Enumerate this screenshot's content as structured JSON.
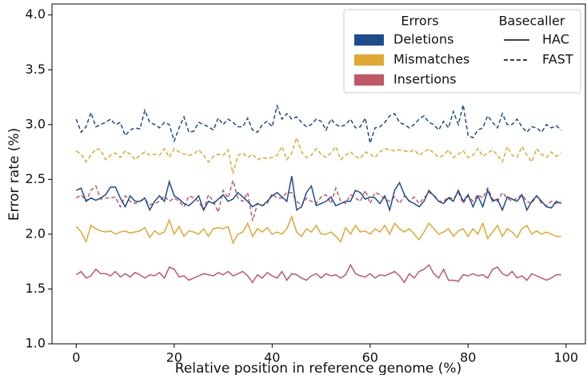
{
  "chart_data": {
    "type": "line",
    "xlabel": "Relative position in reference genome (%)",
    "ylabel": "Error rate (%)",
    "xlim": [
      -4.95,
      103.95
    ],
    "xticks": [
      0,
      20,
      40,
      60,
      80,
      100
    ],
    "ylim": [
      1.0,
      4.1
    ],
    "yticks": [
      {
        "value": 1.0,
        "label": "1.0"
      },
      1.5,
      {
        "value": 2.0,
        "label": "2.0"
      },
      2.5,
      {
        "value": 3.0,
        "label": "3.0"
      },
      3.5,
      {
        "value": 4.0,
        "label": "4.0"
      }
    ],
    "legend": {
      "position": "upper right",
      "errors_title": "Errors",
      "errors": [
        {
          "name": "Deletions",
          "color": "#1c4d8c"
        },
        {
          "name": "Mismatches",
          "color": "#e0a832"
        },
        {
          "name": "Insertions",
          "color": "#c05868"
        }
      ],
      "basecaller_title": "Basecaller",
      "basecallers": [
        {
          "name": "HAC",
          "style": "solid"
        },
        {
          "name": "FAST",
          "style": "dashed"
        }
      ]
    },
    "x": [
      0,
      1,
      2,
      3,
      4,
      5,
      6,
      7,
      8,
      9,
      10,
      11,
      12,
      13,
      14,
      15,
      16,
      17,
      18,
      19,
      20,
      21,
      22,
      23,
      24,
      25,
      26,
      27,
      28,
      29,
      30,
      31,
      32,
      33,
      34,
      35,
      36,
      37,
      38,
      39,
      40,
      41,
      42,
      43,
      44,
      45,
      46,
      47,
      48,
      49,
      50,
      51,
      52,
      53,
      54,
      55,
      56,
      57,
      58,
      59,
      60,
      61,
      62,
      63,
      64,
      65,
      66,
      67,
      68,
      69,
      70,
      71,
      72,
      73,
      74,
      75,
      76,
      77,
      78,
      79,
      80,
      81,
      82,
      83,
      84,
      85,
      86,
      87,
      88,
      89,
      90,
      91,
      92,
      93,
      94,
      95,
      96,
      97,
      98,
      99
    ],
    "series": [
      {
        "error": "Deletions",
        "basecaller": "FAST",
        "color": "#1c4d8c",
        "style": "dashed",
        "values": [
          3.05,
          2.93,
          2.98,
          3.11,
          2.98,
          3.0,
          3.02,
          3.05,
          3.0,
          3.02,
          2.9,
          2.95,
          2.97,
          2.96,
          3.13,
          3.02,
          3.0,
          2.97,
          3.02,
          3.0,
          2.85,
          2.97,
          3.07,
          2.93,
          2.94,
          3.02,
          3.0,
          2.98,
          2.95,
          3.06,
          3.0,
          3.05,
          3.02,
          2.98,
          2.98,
          3.06,
          2.95,
          2.93,
          3.0,
          3.03,
          2.98,
          3.17,
          3.05,
          3.1,
          3.05,
          3.07,
          3.02,
          2.98,
          3.0,
          3.05,
          3.03,
          2.95,
          3.05,
          3.0,
          2.98,
          3.0,
          3.05,
          2.97,
          2.98,
          3.06,
          2.83,
          2.97,
          2.98,
          3.02,
          3.08,
          3.1,
          3.02,
          3.0,
          2.97,
          3.0,
          3.05,
          3.08,
          3.02,
          3.0,
          2.95,
          3.03,
          2.97,
          3.12,
          3.0,
          3.18,
          2.9,
          2.88,
          2.95,
          2.97,
          3.08,
          3.02,
          2.97,
          3.1,
          3.0,
          3.0,
          3.05,
          2.98,
          2.93,
          2.98,
          2.97,
          2.93,
          3.0,
          2.97,
          2.99,
          2.95
        ]
      },
      {
        "error": "Mismatches",
        "basecaller": "FAST",
        "color": "#e0a832",
        "style": "dashed",
        "values": [
          2.76,
          2.73,
          2.66,
          2.72,
          2.78,
          2.77,
          2.68,
          2.72,
          2.74,
          2.7,
          2.76,
          2.73,
          2.68,
          2.72,
          2.75,
          2.72,
          2.73,
          2.72,
          2.78,
          2.7,
          2.78,
          2.75,
          2.73,
          2.72,
          2.73,
          2.77,
          2.72,
          2.66,
          2.71,
          2.73,
          2.72,
          2.77,
          2.55,
          2.72,
          2.74,
          2.7,
          2.73,
          2.68,
          2.7,
          2.69,
          2.7,
          2.72,
          2.8,
          2.68,
          2.74,
          2.88,
          2.75,
          2.7,
          2.72,
          2.78,
          2.73,
          2.7,
          2.74,
          2.8,
          2.68,
          2.72,
          2.75,
          2.71,
          2.69,
          2.75,
          2.73,
          2.7,
          2.75,
          2.78,
          2.77,
          2.76,
          2.77,
          2.76,
          2.75,
          2.77,
          2.72,
          2.75,
          2.78,
          2.74,
          2.7,
          2.72,
          2.77,
          2.7,
          2.73,
          2.76,
          2.7,
          2.72,
          2.78,
          2.71,
          2.74,
          2.77,
          2.72,
          2.66,
          2.8,
          2.72,
          2.7,
          2.8,
          2.72,
          2.66,
          2.78,
          2.73,
          2.7,
          2.75,
          2.71,
          2.74
        ]
      },
      {
        "error": "Insertions",
        "basecaller": "FAST",
        "color": "#c05868",
        "style": "dashed",
        "values": [
          2.33,
          2.36,
          2.3,
          2.4,
          2.44,
          2.32,
          2.33,
          2.33,
          2.34,
          2.25,
          2.35,
          2.3,
          2.28,
          2.3,
          2.32,
          2.27,
          2.28,
          2.3,
          2.35,
          2.3,
          2.33,
          2.3,
          2.25,
          2.35,
          2.33,
          2.3,
          2.22,
          2.36,
          2.3,
          2.2,
          2.4,
          2.33,
          2.49,
          2.33,
          2.3,
          2.38,
          2.12,
          2.28,
          2.26,
          2.28,
          2.37,
          2.33,
          2.33,
          2.38,
          2.38,
          2.3,
          2.26,
          2.33,
          2.3,
          2.28,
          2.34,
          2.36,
          2.28,
          2.42,
          2.3,
          2.28,
          2.36,
          2.33,
          2.3,
          2.4,
          2.28,
          2.38,
          2.36,
          2.32,
          2.3,
          2.34,
          2.28,
          2.35,
          2.3,
          2.34,
          2.28,
          2.33,
          2.38,
          2.36,
          2.3,
          2.3,
          2.34,
          2.32,
          2.38,
          2.28,
          2.35,
          2.3,
          2.36,
          2.33,
          2.42,
          2.32,
          2.3,
          2.38,
          2.33,
          2.3,
          2.33,
          2.36,
          2.3,
          2.28,
          2.35,
          2.28,
          2.26,
          2.3,
          2.28,
          2.3
        ]
      },
      {
        "error": "Deletions",
        "basecaller": "HAC",
        "color": "#1c4d8c",
        "style": "solid",
        "values": [
          2.4,
          2.42,
          2.3,
          2.33,
          2.31,
          2.33,
          2.36,
          2.43,
          2.43,
          2.33,
          2.25,
          2.35,
          2.3,
          2.3,
          2.33,
          2.22,
          2.3,
          2.35,
          2.3,
          2.48,
          2.35,
          2.32,
          2.28,
          2.26,
          2.3,
          2.35,
          2.22,
          2.3,
          2.28,
          2.32,
          2.36,
          2.3,
          2.32,
          2.38,
          2.34,
          2.3,
          2.25,
          2.28,
          2.26,
          2.3,
          2.35,
          2.38,
          2.34,
          2.3,
          2.53,
          2.22,
          2.25,
          2.38,
          2.44,
          2.26,
          2.28,
          2.3,
          2.34,
          2.26,
          2.28,
          2.3,
          2.3,
          2.4,
          2.38,
          2.32,
          2.34,
          2.33,
          2.28,
          2.35,
          2.22,
          2.4,
          2.47,
          2.36,
          2.3,
          2.28,
          2.25,
          2.3,
          2.4,
          2.35,
          2.3,
          2.28,
          2.33,
          2.3,
          2.4,
          2.3,
          2.36,
          2.25,
          2.35,
          2.25,
          2.4,
          2.3,
          2.32,
          2.22,
          2.34,
          2.32,
          2.3,
          2.36,
          2.22,
          2.3,
          2.35,
          2.3,
          2.25,
          2.24,
          2.3,
          2.28
        ]
      },
      {
        "error": "Mismatches",
        "basecaller": "HAC",
        "color": "#e0a832",
        "style": "solid",
        "values": [
          2.07,
          2.02,
          1.93,
          2.08,
          2.05,
          2.03,
          2.02,
          2.03,
          2.0,
          2.02,
          2.03,
          2.01,
          2.02,
          2.03,
          2.06,
          1.97,
          2.03,
          2.0,
          2.02,
          2.13,
          2.0,
          2.07,
          1.98,
          2.03,
          2.02,
          2.0,
          2.05,
          1.98,
          2.05,
          2.06,
          2.05,
          2.07,
          1.92,
          2.0,
          2.02,
          2.1,
          1.98,
          2.05,
          2.02,
          2.06,
          2.0,
          2.02,
          2.0,
          2.05,
          2.16,
          2.02,
          1.98,
          2.05,
          2.02,
          2.08,
          2.0,
          2.0,
          2.02,
          1.98,
          1.93,
          2.06,
          2.0,
          2.08,
          2.02,
          2.03,
          2.0,
          2.05,
          2.02,
          2.08,
          2.0,
          2.1,
          2.05,
          2.02,
          2.05,
          2.0,
          1.95,
          2.02,
          2.1,
          2.05,
          2.0,
          2.02,
          2.05,
          1.98,
          2.03,
          2.05,
          1.98,
          2.05,
          2.0,
          2.1,
          1.96,
          2.02,
          2.08,
          1.98,
          2.05,
          2.02,
          1.97,
          2.05,
          2.08,
          2.0,
          2.03,
          2.0,
          2.02,
          2.0,
          1.98,
          1.98
        ]
      },
      {
        "error": "Insertions",
        "basecaller": "HAC",
        "color": "#c05868",
        "style": "solid",
        "values": [
          1.63,
          1.66,
          1.6,
          1.62,
          1.68,
          1.64,
          1.64,
          1.62,
          1.66,
          1.61,
          1.64,
          1.61,
          1.65,
          1.63,
          1.6,
          1.63,
          1.62,
          1.65,
          1.6,
          1.7,
          1.68,
          1.61,
          1.62,
          1.58,
          1.6,
          1.62,
          1.64,
          1.63,
          1.62,
          1.65,
          1.63,
          1.66,
          1.62,
          1.64,
          1.66,
          1.62,
          1.56,
          1.63,
          1.6,
          1.65,
          1.62,
          1.6,
          1.66,
          1.58,
          1.64,
          1.63,
          1.6,
          1.58,
          1.62,
          1.64,
          1.6,
          1.64,
          1.62,
          1.63,
          1.6,
          1.63,
          1.72,
          1.64,
          1.62,
          1.61,
          1.64,
          1.6,
          1.63,
          1.62,
          1.64,
          1.66,
          1.62,
          1.56,
          1.64,
          1.6,
          1.66,
          1.68,
          1.72,
          1.64,
          1.6,
          1.68,
          1.58,
          1.58,
          1.57,
          1.63,
          1.62,
          1.64,
          1.62,
          1.63,
          1.6,
          1.68,
          1.7,
          1.64,
          1.62,
          1.66,
          1.6,
          1.62,
          1.58,
          1.64,
          1.62,
          1.6,
          1.58,
          1.6,
          1.63,
          1.63
        ]
      }
    ]
  }
}
